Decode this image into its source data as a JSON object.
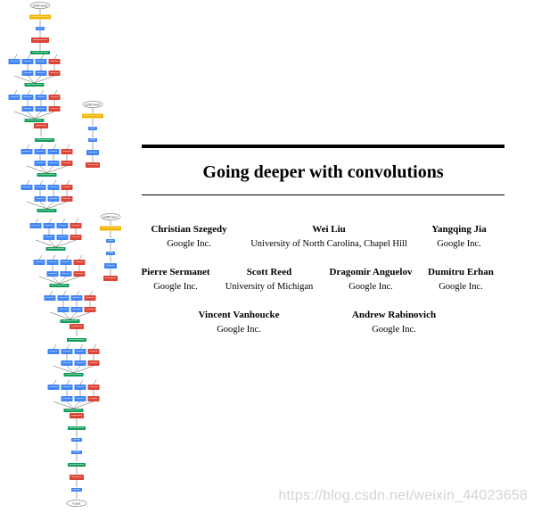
{
  "paper": {
    "title": "Going deeper with convolutions",
    "authors": [
      {
        "name": "Christian Szegedy",
        "affiliation": "Google Inc."
      },
      {
        "name": "Wei Liu",
        "affiliation": "University of North Carolina, Chapel Hill"
      },
      {
        "name": "Yangqing Jia",
        "affiliation": "Google Inc."
      },
      {
        "name": "Pierre Sermanet",
        "affiliation": "Google Inc."
      },
      {
        "name": "Scott Reed",
        "affiliation": "University of Michigan"
      },
      {
        "name": "Dragomir Anguelov",
        "affiliation": "Google Inc."
      },
      {
        "name": "Dumitru Erhan",
        "affiliation": "Google Inc."
      },
      {
        "name": "Vincent Vanhoucke",
        "affiliation": "Google Inc."
      },
      {
        "name": "Andrew Rabinovich",
        "affiliation": "Google Inc."
      }
    ]
  },
  "figure": {
    "description_colors": {
      "conv": "#4285f4",
      "pool": "#db4437",
      "concat": "#0f9d58",
      "softmax": "#f4b400"
    },
    "node_labels": {
      "input": "input",
      "softmax_top": "softmax0",
      "softmax_mid": "softmax1",
      "softmax_main": "softmax2"
    }
  },
  "watermark": "https://blog.csdn.net/weixin_44023658"
}
